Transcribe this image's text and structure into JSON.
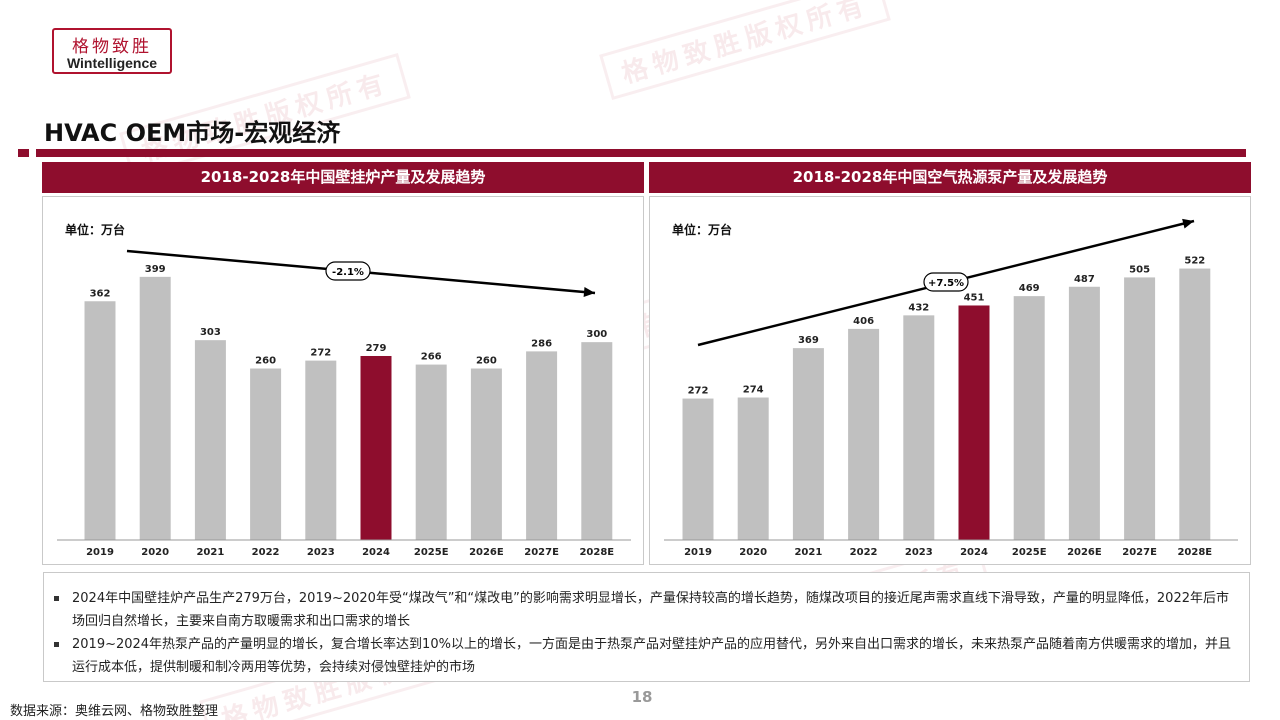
{
  "logo": {
    "cn": "格物致胜",
    "en": "Wintelligence"
  },
  "watermark": "格物致胜版权所有",
  "page_title": "HVAC OEM市场-宏观经济",
  "accent_color": "#8e0d2d",
  "bar_color": "#c0c0c0",
  "chart_data": [
    {
      "type": "bar",
      "title": "2018-2028年中国壁挂炉产量及发展趋势",
      "unit": "单位：万台",
      "categories": [
        "2019",
        "2020",
        "2021",
        "2022",
        "2023",
        "2024",
        "2025E",
        "2026E",
        "2027E",
        "2028E"
      ],
      "values": [
        362,
        399,
        303,
        260,
        272,
        279,
        266,
        260,
        286,
        300
      ],
      "highlight_index": 5,
      "ylim": [
        0,
        420
      ],
      "trend_label": "-2.1%"
    },
    {
      "type": "bar",
      "title": "2018-2028年中国空气热源泵产量及发展趋势",
      "unit": "单位：万台",
      "categories": [
        "2019",
        "2020",
        "2021",
        "2022",
        "2023",
        "2024",
        "2025E",
        "2026E",
        "2027E",
        "2028E"
      ],
      "values": [
        272,
        274,
        369,
        406,
        432,
        451,
        469,
        487,
        505,
        522
      ],
      "highlight_index": 5,
      "ylim": [
        0,
        550
      ],
      "trend_label": "+7.5%"
    }
  ],
  "notes": [
    "2024年中国壁挂炉产品生产279万台，2019~2020年受“煤改气”和“煤改电”的影响需求明显增长，产量保持较高的增长趋势，随煤改项目的接近尾声需求直线下滑导致，产量的明显降低，2022年后市场回归自然增长，主要来自南方取暖需求和出口需求的增长",
    "2019~2024年热泵产品的产量明显的增长，复合增长率达到10%以上的增长，一方面是由于热泵产品对壁挂炉产品的应用替代，另外来自出口需求的增长，未来热泵产品随着南方供暖需求的增加，并且运行成本低，提供制暖和制冷两用等优势，会持续对侵蚀壁挂炉的市场"
  ],
  "page_number": "18",
  "source": "数据来源：奥维云网、格物致胜整理"
}
